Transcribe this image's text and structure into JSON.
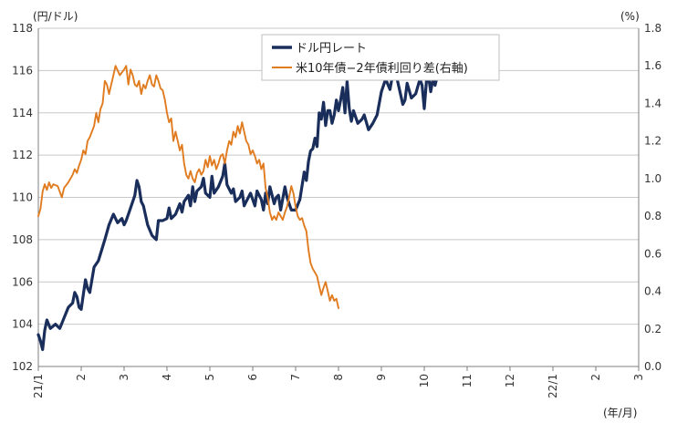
{
  "chart_data": {
    "type": "line",
    "left_axis_unit": "(円/ドル)",
    "right_axis_unit": "(%)",
    "x_axis_unit": "(年/月)",
    "ylim_left": [
      102,
      118
    ],
    "ylim_right": [
      0.0,
      1.8
    ],
    "y_ticks_left": [
      "102",
      "104",
      "106",
      "108",
      "110",
      "112",
      "114",
      "116",
      "118"
    ],
    "y_ticks_right": [
      "0.0",
      "0.2",
      "0.4",
      "0.6",
      "0.8",
      "1.0",
      "1.2",
      "1.4",
      "1.6",
      "1.8"
    ],
    "x_ticks": [
      {
        "label": "21/1",
        "month_index": 0
      },
      {
        "label": "2",
        "month_index": 1
      },
      {
        "label": "3",
        "month_index": 2
      },
      {
        "label": "4",
        "month_index": 3
      },
      {
        "label": "5",
        "month_index": 4
      },
      {
        "label": "6",
        "month_index": 5
      },
      {
        "label": "7",
        "month_index": 6
      },
      {
        "label": "8",
        "month_index": 7
      },
      {
        "label": "9",
        "month_index": 8
      },
      {
        "label": "10",
        "month_index": 9
      },
      {
        "label": "11",
        "month_index": 10
      },
      {
        "label": "12",
        "month_index": 11
      },
      {
        "label": "22/1",
        "month_index": 12
      },
      {
        "label": "2",
        "month_index": 13
      },
      {
        "label": "3",
        "month_index": 14
      }
    ],
    "grid": "horizontal",
    "legend_position": "top-center",
    "series": [
      {
        "name": "ドル円レート",
        "axis": "left",
        "color": "#1a2e5c",
        "points": [
          [
            0.0,
            103.5
          ],
          [
            0.05,
            103.2
          ],
          [
            0.1,
            102.8
          ],
          [
            0.15,
            103.7
          ],
          [
            0.2,
            104.2
          ],
          [
            0.28,
            103.8
          ],
          [
            0.4,
            104.0
          ],
          [
            0.5,
            103.8
          ],
          [
            0.6,
            104.3
          ],
          [
            0.7,
            104.8
          ],
          [
            0.8,
            105.0
          ],
          [
            0.85,
            105.5
          ],
          [
            0.9,
            105.3
          ],
          [
            0.95,
            104.8
          ],
          [
            1.0,
            104.7
          ],
          [
            1.05,
            105.4
          ],
          [
            1.1,
            106.1
          ],
          [
            1.15,
            105.7
          ],
          [
            1.2,
            105.5
          ],
          [
            1.3,
            106.7
          ],
          [
            1.4,
            107.0
          ],
          [
            1.55,
            108.0
          ],
          [
            1.65,
            108.7
          ],
          [
            1.75,
            109.2
          ],
          [
            1.85,
            108.8
          ],
          [
            1.95,
            109.0
          ],
          [
            2.0,
            108.7
          ],
          [
            2.05,
            108.9
          ],
          [
            2.15,
            109.5
          ],
          [
            2.25,
            110.1
          ],
          [
            2.3,
            110.8
          ],
          [
            2.35,
            110.5
          ],
          [
            2.4,
            109.8
          ],
          [
            2.45,
            109.6
          ],
          [
            2.55,
            108.7
          ],
          [
            2.65,
            108.2
          ],
          [
            2.75,
            108.0
          ],
          [
            2.8,
            108.9
          ],
          [
            2.9,
            108.9
          ],
          [
            3.0,
            109.0
          ],
          [
            3.05,
            109.5
          ],
          [
            3.1,
            109.0
          ],
          [
            3.2,
            109.2
          ],
          [
            3.3,
            109.7
          ],
          [
            3.35,
            109.3
          ],
          [
            3.4,
            109.8
          ],
          [
            3.5,
            110.1
          ],
          [
            3.55,
            109.6
          ],
          [
            3.6,
            110.5
          ],
          [
            3.65,
            109.8
          ],
          [
            3.7,
            110.3
          ],
          [
            3.8,
            110.5
          ],
          [
            3.85,
            110.9
          ],
          [
            3.9,
            110.2
          ],
          [
            4.0,
            110.0
          ],
          [
            4.05,
            111.0
          ],
          [
            4.1,
            110.2
          ],
          [
            4.2,
            110.5
          ],
          [
            4.3,
            111.0
          ],
          [
            4.35,
            111.6
          ],
          [
            4.4,
            110.6
          ],
          [
            4.5,
            110.2
          ],
          [
            4.55,
            110.4
          ],
          [
            4.6,
            109.8
          ],
          [
            4.7,
            110.0
          ],
          [
            4.75,
            110.3
          ],
          [
            4.8,
            109.6
          ],
          [
            4.85,
            109.8
          ],
          [
            4.95,
            110.2
          ],
          [
            5.0,
            109.9
          ],
          [
            5.05,
            109.6
          ],
          [
            5.1,
            110.3
          ],
          [
            5.2,
            109.9
          ],
          [
            5.25,
            109.4
          ],
          [
            5.3,
            110.2
          ],
          [
            5.35,
            109.7
          ],
          [
            5.4,
            110.5
          ],
          [
            5.45,
            110.1
          ],
          [
            5.5,
            109.7
          ],
          [
            5.55,
            110.0
          ],
          [
            5.6,
            110.1
          ],
          [
            5.65,
            109.4
          ],
          [
            5.75,
            110.5
          ],
          [
            5.8,
            110.0
          ],
          [
            5.9,
            109.4
          ],
          [
            6.0,
            109.4
          ],
          [
            6.1,
            109.9
          ],
          [
            6.2,
            111.2
          ],
          [
            6.25,
            110.8
          ],
          [
            6.3,
            111.7
          ],
          [
            6.35,
            112.2
          ],
          [
            6.4,
            112.3
          ],
          [
            6.45,
            112.8
          ],
          [
            6.5,
            112.4
          ],
          [
            6.55,
            114.0
          ],
          [
            6.6,
            113.7
          ],
          [
            6.65,
            114.5
          ],
          [
            6.7,
            113.4
          ],
          [
            6.75,
            114.1
          ],
          [
            6.8,
            114.1
          ],
          [
            6.85,
            113.5
          ],
          [
            6.9,
            113.9
          ],
          [
            6.95,
            114.6
          ],
          [
            7.0,
            114.1
          ],
          [
            7.05,
            114.6
          ],
          [
            7.1,
            115.2
          ],
          [
            7.15,
            114.0
          ],
          [
            7.2,
            115.5
          ],
          [
            7.25,
            114.2
          ],
          [
            7.3,
            113.6
          ],
          [
            7.35,
            114.1
          ],
          [
            7.45,
            113.5
          ],
          [
            7.55,
            113.7
          ],
          [
            7.6,
            113.9
          ],
          [
            7.7,
            113.2
          ],
          [
            7.8,
            113.5
          ],
          [
            7.9,
            113.9
          ],
          [
            8.0,
            115.0
          ],
          [
            8.1,
            115.6
          ],
          [
            8.2,
            115.1
          ],
          [
            8.3,
            116.2
          ],
          [
            8.4,
            115.3
          ],
          [
            8.5,
            114.4
          ],
          [
            8.55,
            114.6
          ],
          [
            8.6,
            115.4
          ],
          [
            8.7,
            114.7
          ],
          [
            8.8,
            114.9
          ],
          [
            8.9,
            115.6
          ],
          [
            8.95,
            115.3
          ],
          [
            9.0,
            114.2
          ],
          [
            9.05,
            115.5
          ],
          [
            9.1,
            115.7
          ],
          [
            9.15,
            115.0
          ],
          [
            9.2,
            115.6
          ],
          [
            9.25,
            115.3
          ],
          [
            9.3,
            115.7
          ]
        ]
      },
      {
        "name": "米10年債−2年債利回り差(右軸)",
        "axis": "right",
        "color": "#e07b1f",
        "points": [
          [
            0.0,
            0.8
          ],
          [
            0.05,
            0.84
          ],
          [
            0.1,
            0.93
          ],
          [
            0.15,
            0.97
          ],
          [
            0.2,
            0.94
          ],
          [
            0.25,
            0.98
          ],
          [
            0.3,
            0.95
          ],
          [
            0.35,
            0.97
          ],
          [
            0.45,
            0.96
          ],
          [
            0.5,
            0.93
          ],
          [
            0.55,
            0.9
          ],
          [
            0.6,
            0.95
          ],
          [
            0.7,
            0.98
          ],
          [
            0.8,
            1.02
          ],
          [
            0.85,
            1.05
          ],
          [
            0.9,
            1.03
          ],
          [
            0.95,
            1.07
          ],
          [
            1.0,
            1.1
          ],
          [
            1.05,
            1.15
          ],
          [
            1.1,
            1.13
          ],
          [
            1.15,
            1.2
          ],
          [
            1.2,
            1.22
          ],
          [
            1.3,
            1.28
          ],
          [
            1.35,
            1.35
          ],
          [
            1.4,
            1.3
          ],
          [
            1.45,
            1.37
          ],
          [
            1.5,
            1.4
          ],
          [
            1.55,
            1.52
          ],
          [
            1.6,
            1.5
          ],
          [
            1.65,
            1.45
          ],
          [
            1.7,
            1.5
          ],
          [
            1.75,
            1.55
          ],
          [
            1.8,
            1.6
          ],
          [
            1.9,
            1.55
          ],
          [
            2.0,
            1.58
          ],
          [
            2.05,
            1.6
          ],
          [
            2.1,
            1.5
          ],
          [
            2.15,
            1.58
          ],
          [
            2.2,
            1.55
          ],
          [
            2.25,
            1.5
          ],
          [
            2.3,
            1.49
          ],
          [
            2.35,
            1.52
          ],
          [
            2.4,
            1.45
          ],
          [
            2.45,
            1.5
          ],
          [
            2.5,
            1.48
          ],
          [
            2.55,
            1.52
          ],
          [
            2.6,
            1.55
          ],
          [
            2.65,
            1.5
          ],
          [
            2.7,
            1.49
          ],
          [
            2.75,
            1.55
          ],
          [
            2.8,
            1.52
          ],
          [
            2.85,
            1.48
          ],
          [
            2.9,
            1.47
          ],
          [
            2.95,
            1.42
          ],
          [
            3.0,
            1.35
          ],
          [
            3.05,
            1.3
          ],
          [
            3.1,
            1.32
          ],
          [
            3.15,
            1.2
          ],
          [
            3.2,
            1.25
          ],
          [
            3.25,
            1.2
          ],
          [
            3.3,
            1.15
          ],
          [
            3.35,
            1.18
          ],
          [
            3.4,
            1.08
          ],
          [
            3.45,
            1.02
          ],
          [
            3.5,
            1.0
          ],
          [
            3.55,
            1.04
          ],
          [
            3.6,
            1.0
          ],
          [
            3.65,
            0.98
          ],
          [
            3.7,
            1.03
          ],
          [
            3.75,
            1.05
          ],
          [
            3.8,
            1.02
          ],
          [
            3.85,
            1.04
          ],
          [
            3.9,
            1.1
          ],
          [
            3.95,
            1.06
          ],
          [
            4.0,
            1.12
          ],
          [
            4.05,
            1.07
          ],
          [
            4.1,
            1.1
          ],
          [
            4.15,
            1.05
          ],
          [
            4.2,
            1.08
          ],
          [
            4.25,
            1.12
          ],
          [
            4.3,
            1.13
          ],
          [
            4.35,
            1.08
          ],
          [
            4.4,
            1.15
          ],
          [
            4.45,
            1.2
          ],
          [
            4.5,
            1.18
          ],
          [
            4.55,
            1.25
          ],
          [
            4.6,
            1.22
          ],
          [
            4.65,
            1.28
          ],
          [
            4.7,
            1.24
          ],
          [
            4.75,
            1.3
          ],
          [
            4.8,
            1.25
          ],
          [
            4.85,
            1.2
          ],
          [
            4.9,
            1.18
          ],
          [
            4.95,
            1.13
          ],
          [
            5.0,
            1.15
          ],
          [
            5.05,
            1.12
          ],
          [
            5.1,
            1.08
          ],
          [
            5.15,
            1.1
          ],
          [
            5.2,
            1.05
          ],
          [
            5.25,
            1.08
          ],
          [
            5.3,
            0.95
          ],
          [
            5.35,
            0.9
          ],
          [
            5.4,
            0.82
          ],
          [
            5.45,
            0.78
          ],
          [
            5.5,
            0.8
          ],
          [
            5.55,
            0.78
          ],
          [
            5.6,
            0.82
          ],
          [
            5.65,
            0.8
          ],
          [
            5.7,
            0.78
          ],
          [
            5.75,
            0.82
          ],
          [
            5.8,
            0.85
          ],
          [
            5.85,
            0.9
          ],
          [
            5.9,
            0.96
          ],
          [
            5.95,
            0.92
          ],
          [
            6.0,
            0.85
          ],
          [
            6.05,
            0.8
          ],
          [
            6.1,
            0.78
          ],
          [
            6.15,
            0.79
          ],
          [
            6.2,
            0.75
          ],
          [
            6.25,
            0.72
          ],
          [
            6.3,
            0.62
          ],
          [
            6.35,
            0.55
          ],
          [
            6.4,
            0.52
          ],
          [
            6.45,
            0.5
          ],
          [
            6.5,
            0.48
          ],
          [
            6.55,
            0.43
          ],
          [
            6.6,
            0.38
          ],
          [
            6.65,
            0.42
          ],
          [
            6.7,
            0.45
          ],
          [
            6.75,
            0.4
          ],
          [
            6.8,
            0.35
          ],
          [
            6.85,
            0.38
          ],
          [
            6.9,
            0.35
          ],
          [
            6.95,
            0.36
          ],
          [
            7.0,
            0.31
          ]
        ]
      }
    ]
  }
}
